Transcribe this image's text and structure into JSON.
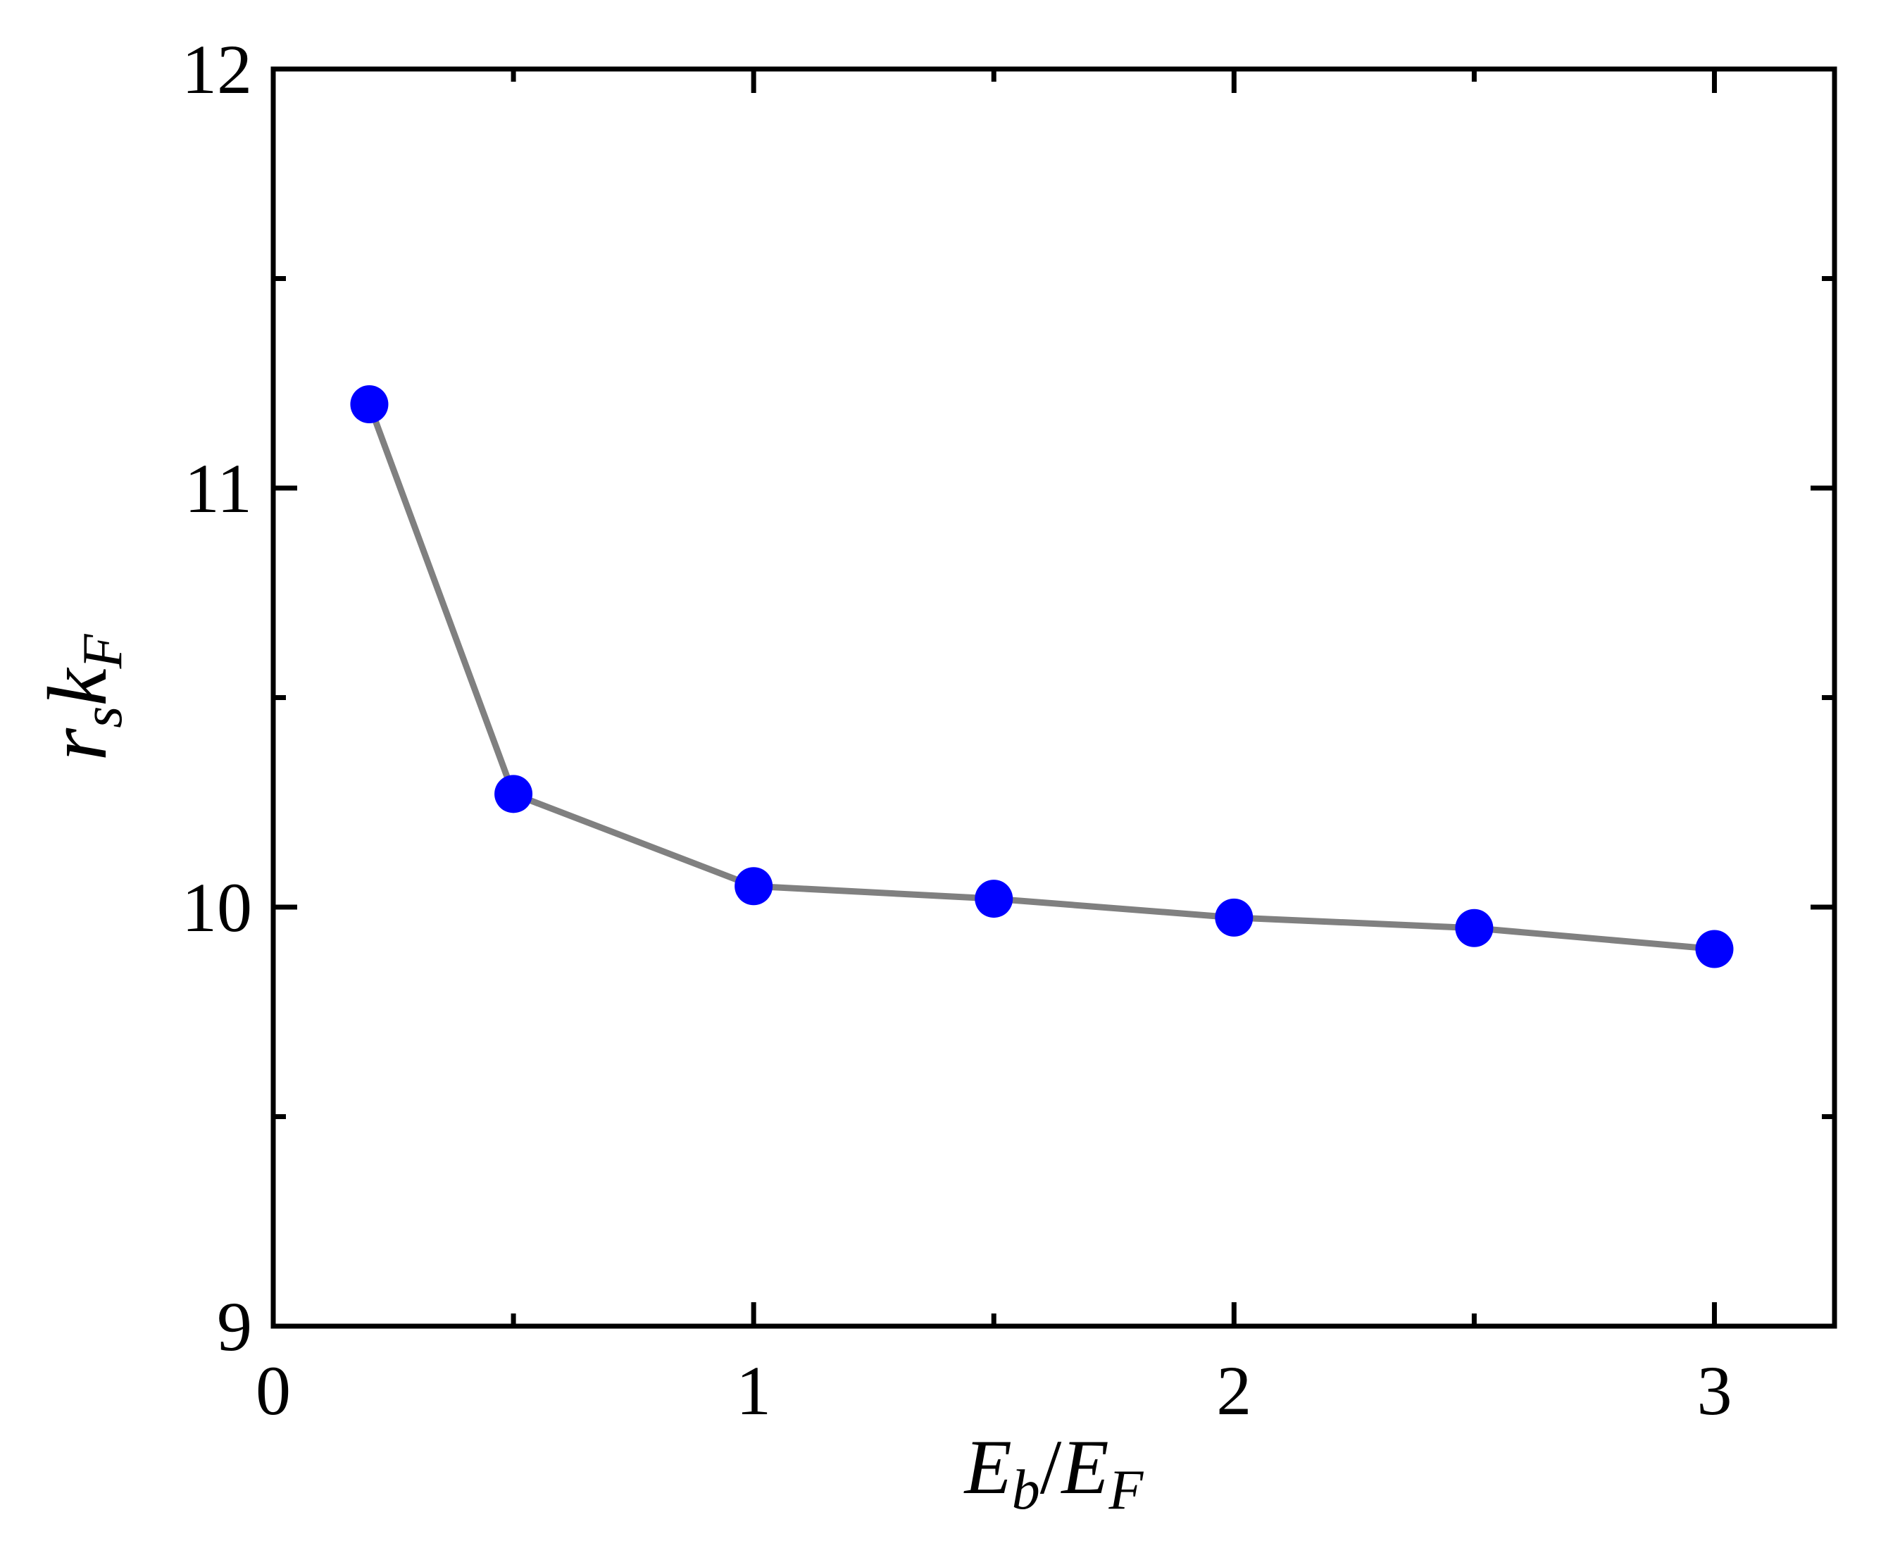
{
  "chart_data": {
    "type": "line",
    "title": "",
    "xlabel": {
      "main": "E",
      "sub": "b",
      "sep": "/",
      "main2": "E",
      "sub2": "F"
    },
    "ylabel": {
      "main": "r",
      "sub": "s",
      "main2": "k",
      "sub2": "F"
    },
    "xlim": [
      0,
      3.25
    ],
    "ylim": [
      9,
      12
    ],
    "xticks": [
      0,
      1,
      2,
      3
    ],
    "xtick_labels": [
      "0",
      "1",
      "2",
      "3"
    ],
    "xminor_ticks": [
      0.5,
      1.5,
      2.5
    ],
    "yticks": [
      9,
      10,
      11,
      12
    ],
    "ytick_labels": [
      "9",
      "10",
      "11",
      "12"
    ],
    "yminor_ticks": [
      9.5,
      10.5,
      11.5
    ],
    "grid": false,
    "series": [
      {
        "x": [
          0.2,
          0.5,
          1.0,
          1.5,
          2.0,
          2.5,
          3.0
        ],
        "y": [
          11.2,
          10.27,
          10.05,
          10.02,
          9.975,
          9.95,
          9.9
        ],
        "line_color": "#808080",
        "marker_color": "#0000ff"
      }
    ]
  }
}
